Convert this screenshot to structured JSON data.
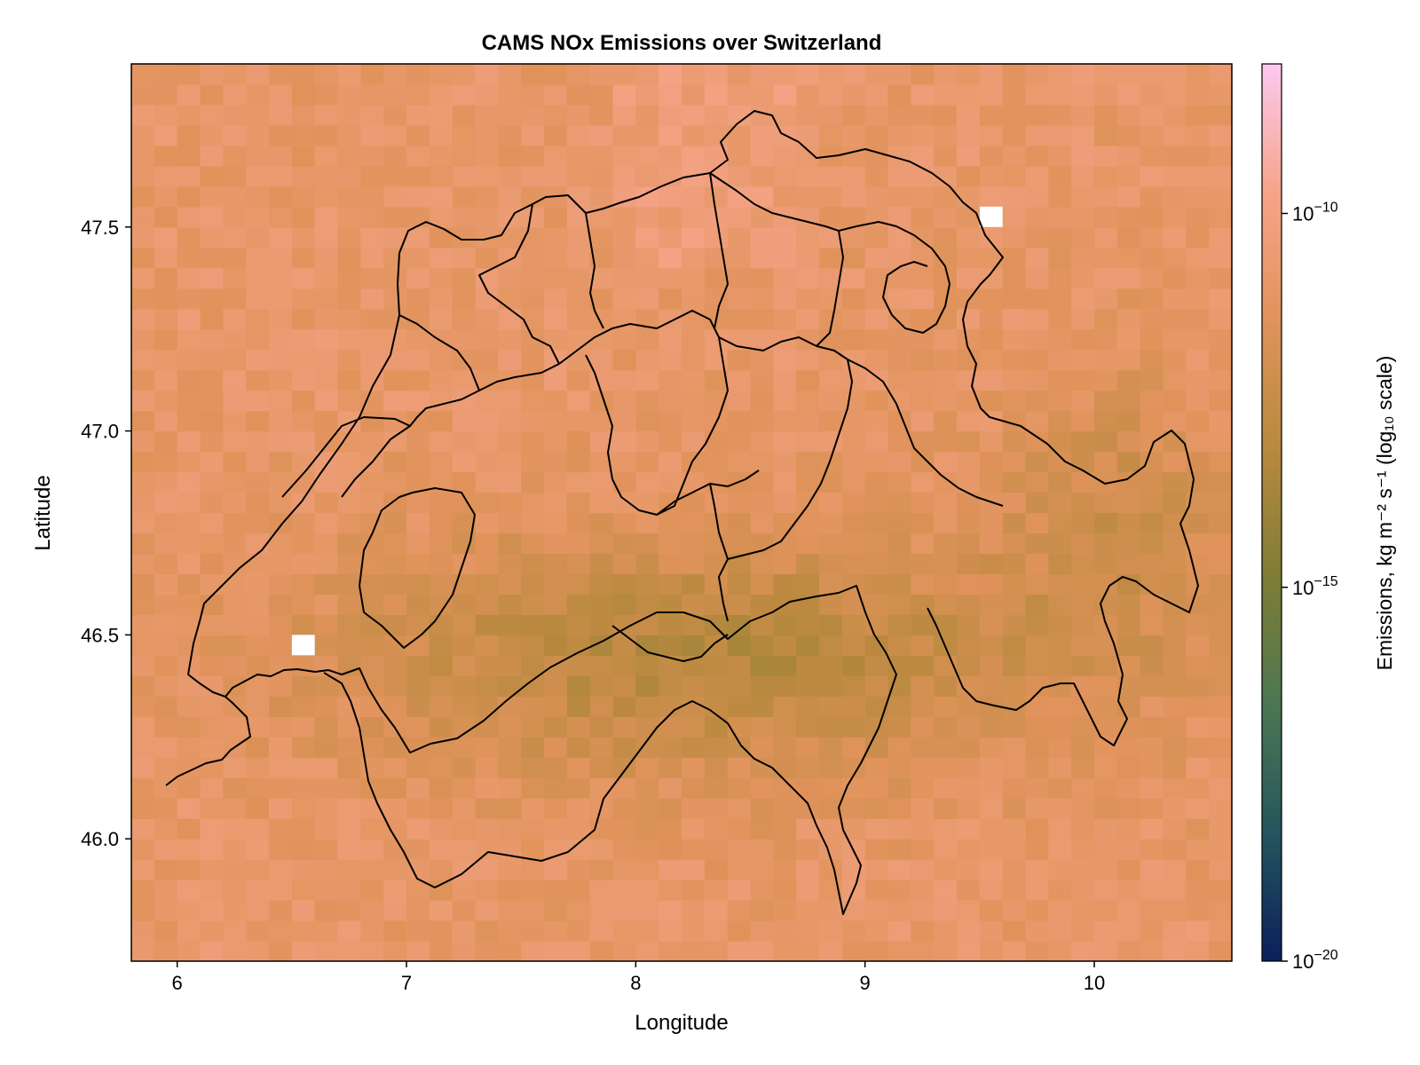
{
  "chart_data": {
    "type": "heatmap",
    "title": "CAMS NOx Emissions over Switzerland",
    "xlabel": "Longitude",
    "ylabel": "Latitude",
    "xlim": [
      5.8,
      10.6
    ],
    "ylim": [
      45.7,
      47.9
    ],
    "xticks": [
      6,
      7,
      8,
      9,
      10
    ],
    "xtick_labels": [
      "6",
      "7",
      "8",
      "9",
      "10"
    ],
    "yticks": [
      46.0,
      46.5,
      47.0,
      47.5
    ],
    "ytick_labels": [
      "46.0",
      "46.5",
      "47.0",
      "47.5"
    ],
    "grid": false,
    "grid_resolution_deg": {
      "lon": 0.1,
      "lat": 0.05
    },
    "colorbar": {
      "label": "Emissions, kg m⁻² s⁻¹ (log₁₀ scale)",
      "scale": "log10",
      "range": [
        1e-20,
        1e-08
      ],
      "ticks": [
        1e-20,
        1e-15,
        1e-10
      ],
      "tick_base": "10",
      "tick_exponents": [
        "−20",
        "−15",
        "−10"
      ],
      "colormap": [
        "#0b1f5c",
        "#25555e",
        "#4c7752",
        "#7f7d35",
        "#b8893e",
        "#e0935b",
        "#f6a48a",
        "#fcc9f0"
      ]
    },
    "typical_values": {
      "lowlands_max": 1e-10,
      "lowlands_typical": 1e-11,
      "alpine_valleys": 1e-12,
      "high_alps_min": 1e-15
    },
    "missing_cells": [
      {
        "lon": 6.55,
        "lat": 46.475
      },
      {
        "lon": 9.55,
        "lat": 47.525
      }
    ],
    "border_overlay": "Swiss national and cantonal boundaries (black lines)"
  }
}
